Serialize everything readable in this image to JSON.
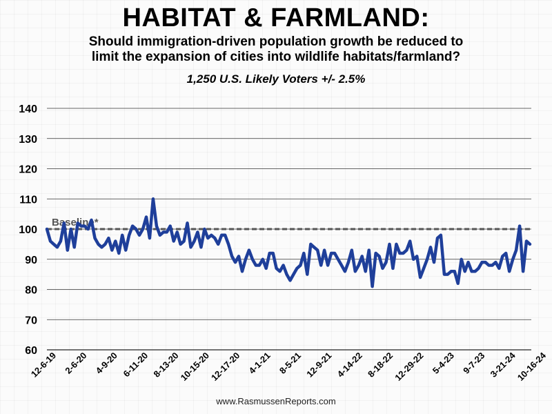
{
  "header": {
    "title": "HABITAT & FARMLAND:",
    "subtitle_line1": "Should immigration-driven population growth be reduced to",
    "subtitle_line2": "limit the expansion of cities into wildlife habitats/farmland?",
    "sample_note": "1,250 U.S. Likely Voters +/- 2.5%"
  },
  "footer": {
    "source": "www.RasmussenReports.com"
  },
  "chart_data": {
    "type": "line",
    "title": "HABITAT & FARMLAND:",
    "ylim": [
      60,
      140
    ],
    "yticks": [
      60,
      70,
      80,
      90,
      100,
      110,
      120,
      130,
      140
    ],
    "grid": true,
    "line_color": "#1f3f9a",
    "baseline": {
      "label": "Baseline*",
      "value": 100,
      "color": "#555555"
    },
    "x_tick_labels": [
      "12-6-19",
      "2-6-20",
      "4-9-20",
      "6-11-20",
      "8-13-20",
      "10-15-20",
      "12-17-20",
      "4-1-21",
      "8-5-21",
      "12-9-21",
      "4-14-22",
      "8-18-22",
      "12-29-22",
      "5-4-23",
      "9-7-23",
      "3-21-24",
      "10-16-24"
    ],
    "series": [
      {
        "values": [
          100,
          96,
          95,
          94,
          96,
          102,
          93,
          100,
          94,
          102,
          101,
          101,
          100,
          103,
          97,
          95,
          94,
          95,
          97,
          93,
          96,
          92,
          98,
          93,
          98,
          101,
          100,
          98,
          100,
          104,
          97,
          110,
          101,
          98,
          99,
          99,
          101,
          96,
          99,
          95,
          96,
          102,
          94,
          96,
          99,
          94,
          100,
          97,
          98,
          97,
          95,
          98,
          98,
          95,
          91,
          89,
          91,
          86,
          90,
          93,
          90,
          88,
          88,
          90,
          87,
          92,
          92,
          87,
          86,
          88,
          85,
          83,
          85,
          87,
          88,
          92,
          85,
          95,
          94,
          93,
          88,
          93,
          88,
          92,
          92,
          90,
          88,
          86,
          89,
          93,
          86,
          88,
          91,
          86,
          93,
          81,
          92,
          91,
          87,
          89,
          95,
          87,
          95,
          92,
          92,
          93,
          96,
          90,
          91,
          84,
          87,
          90,
          94,
          89,
          97,
          98,
          85,
          85,
          86,
          86,
          82,
          90,
          86,
          89,
          86,
          86,
          87,
          89,
          89,
          88,
          88,
          89,
          87,
          91,
          92,
          86,
          90,
          93,
          101,
          86,
          96,
          95
        ]
      }
    ]
  }
}
